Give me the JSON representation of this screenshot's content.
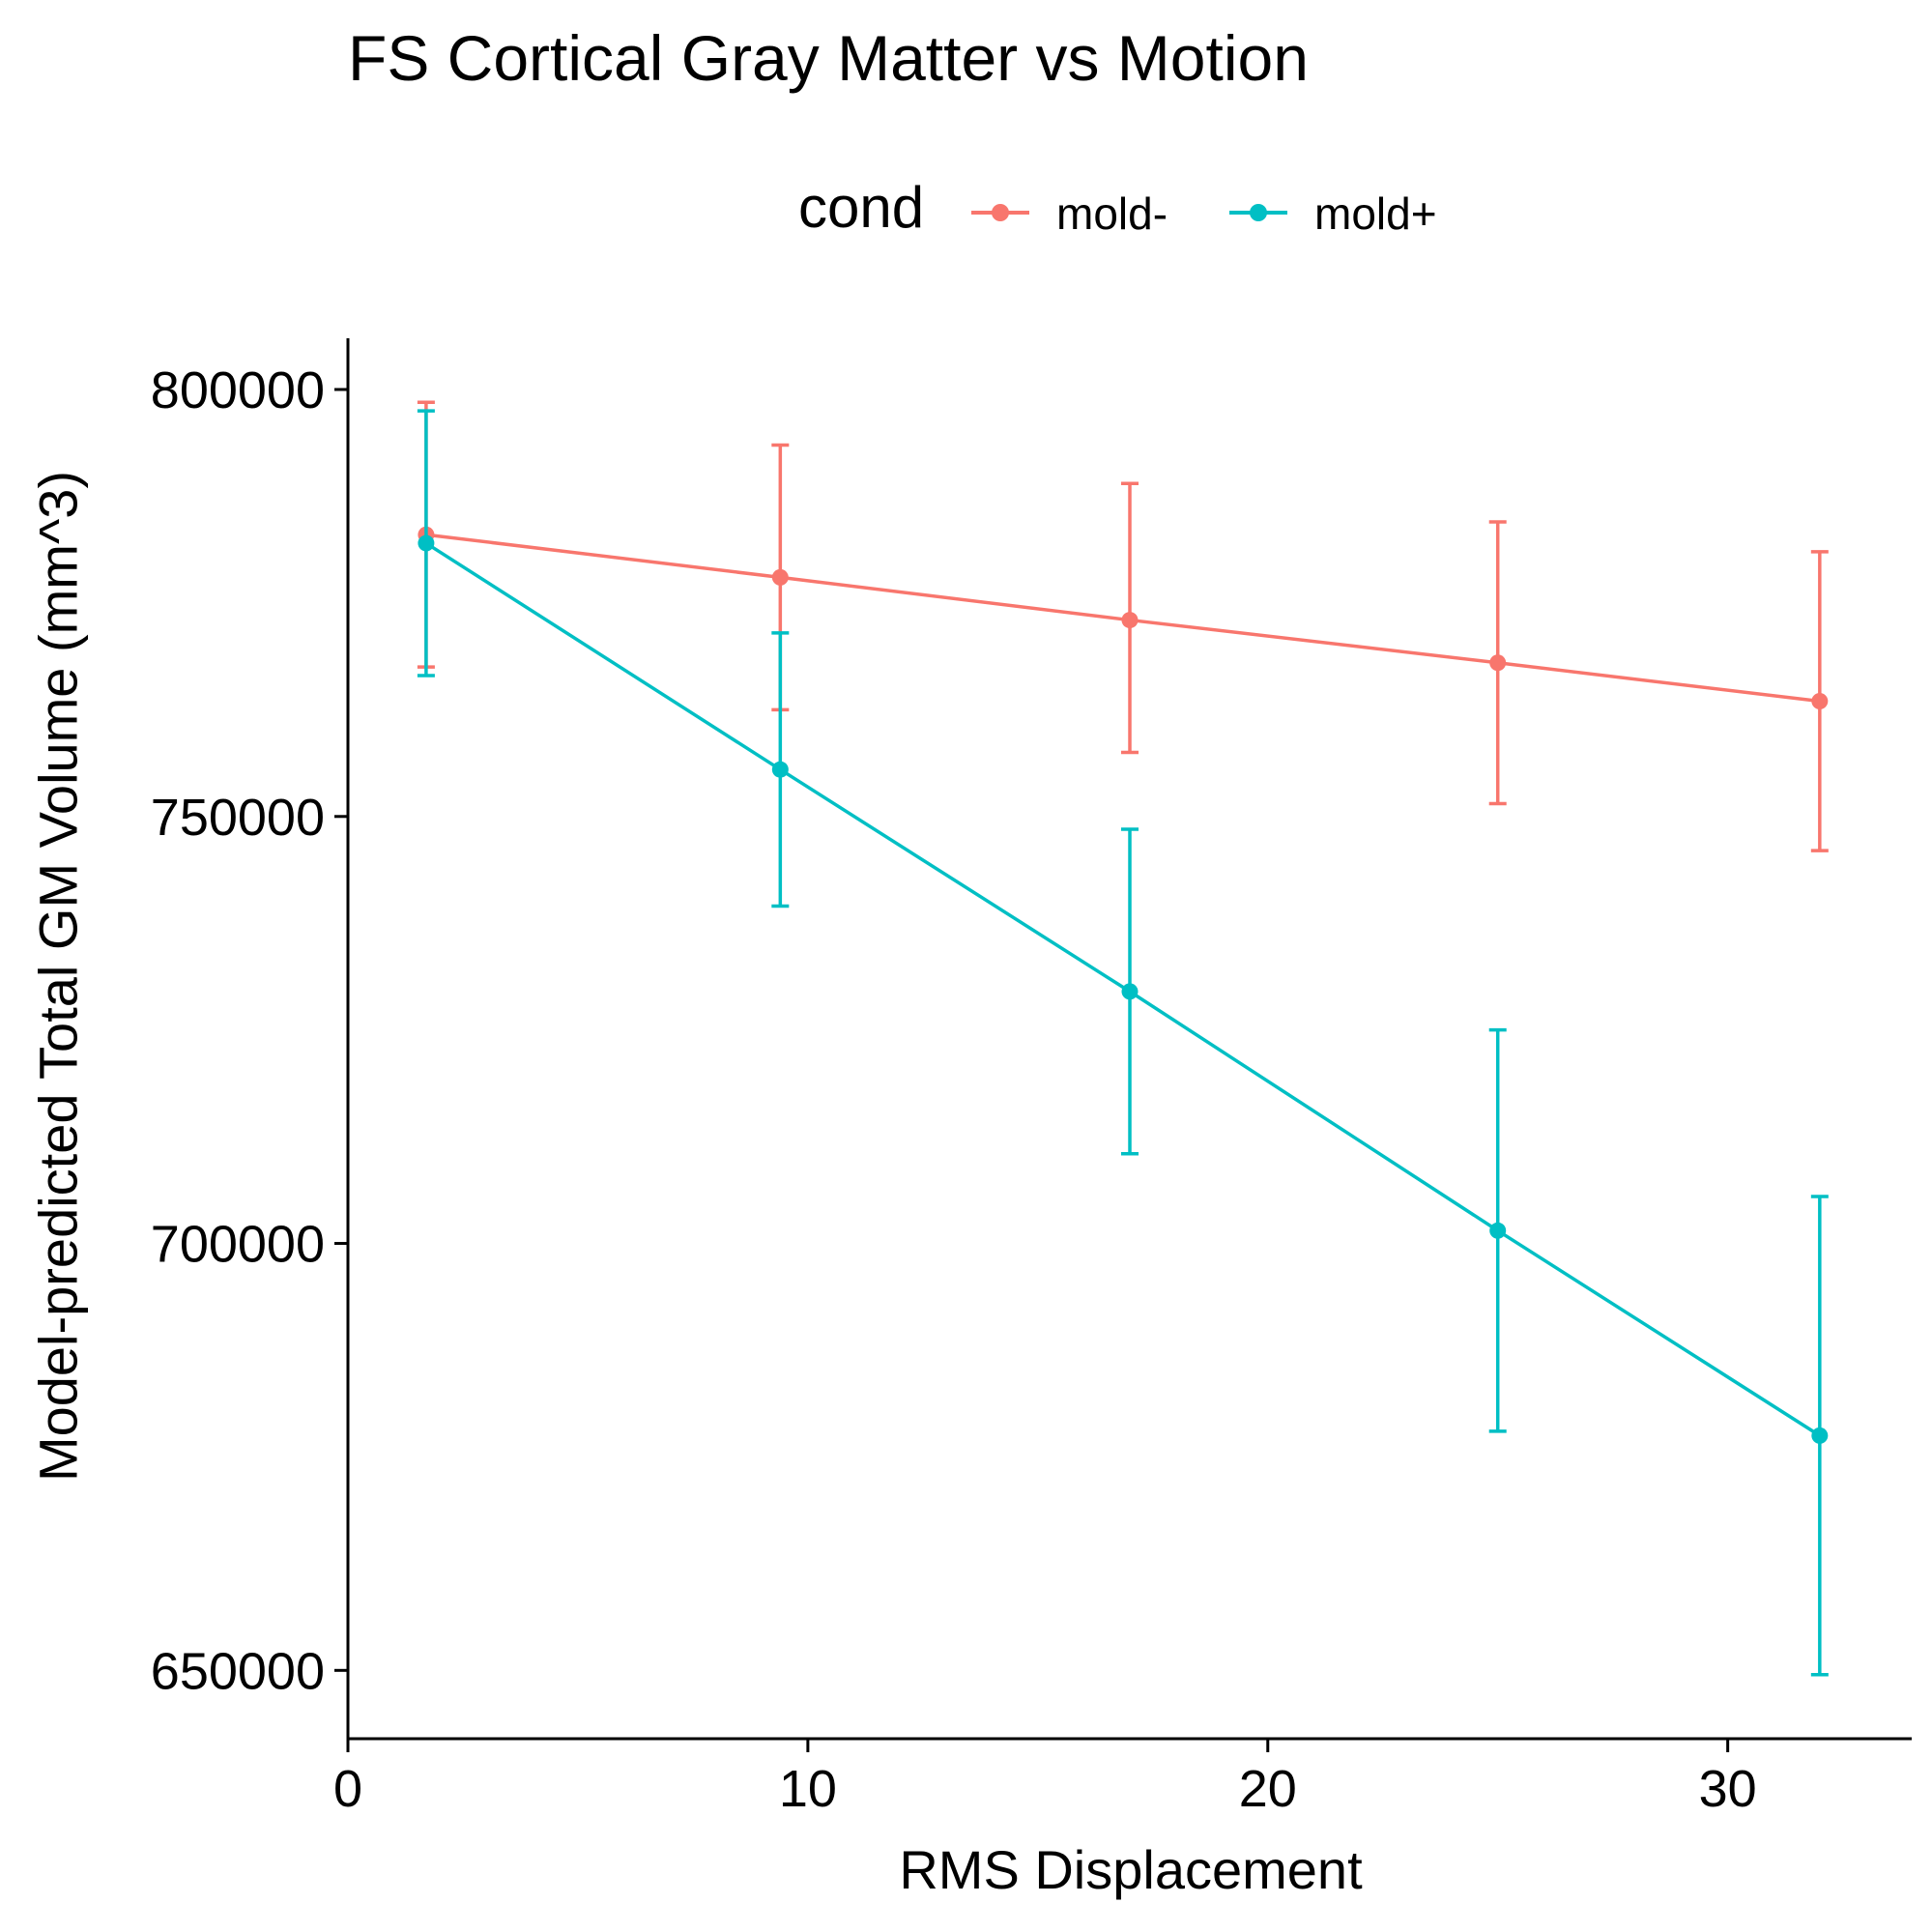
{
  "chart_data": {
    "type": "line",
    "title": "FS Cortical Gray Matter vs Motion",
    "xlabel": "RMS Displacement",
    "ylabel": "Model-predicted Total GM Volume (mm^3)",
    "xlim": [
      0,
      34
    ],
    "ylim": [
      642000,
      806000
    ],
    "x_ticks": [
      0,
      10,
      20,
      30
    ],
    "y_ticks": [
      650000,
      700000,
      750000,
      800000
    ],
    "x_tick_labels": [
      "0",
      "10",
      "20",
      "30"
    ],
    "y_tick_labels": [
      "650000",
      "700000",
      "750000",
      "800000"
    ],
    "grid": false,
    "legend": {
      "title": "cond",
      "position": "top"
    },
    "series": [
      {
        "name": "mold-",
        "color": "#F8766D",
        "x": [
          1.7,
          9.4,
          17.0,
          25.0,
          32.0
        ],
        "y": [
          783000,
          778000,
          773000,
          768000,
          763500
        ],
        "ymin": [
          767500,
          762500,
          757500,
          751500,
          746000
        ],
        "ymax": [
          798500,
          793500,
          789000,
          784500,
          781000
        ]
      },
      {
        "name": "mold+",
        "color": "#00BFC4",
        "x": [
          1.7,
          9.4,
          17.0,
          25.0,
          32.0
        ],
        "y": [
          782000,
          755500,
          729500,
          701500,
          677500
        ],
        "ymin": [
          766500,
          739500,
          710500,
          678000,
          649500
        ],
        "ymax": [
          797500,
          771500,
          748500,
          725000,
          705500
        ]
      }
    ]
  }
}
